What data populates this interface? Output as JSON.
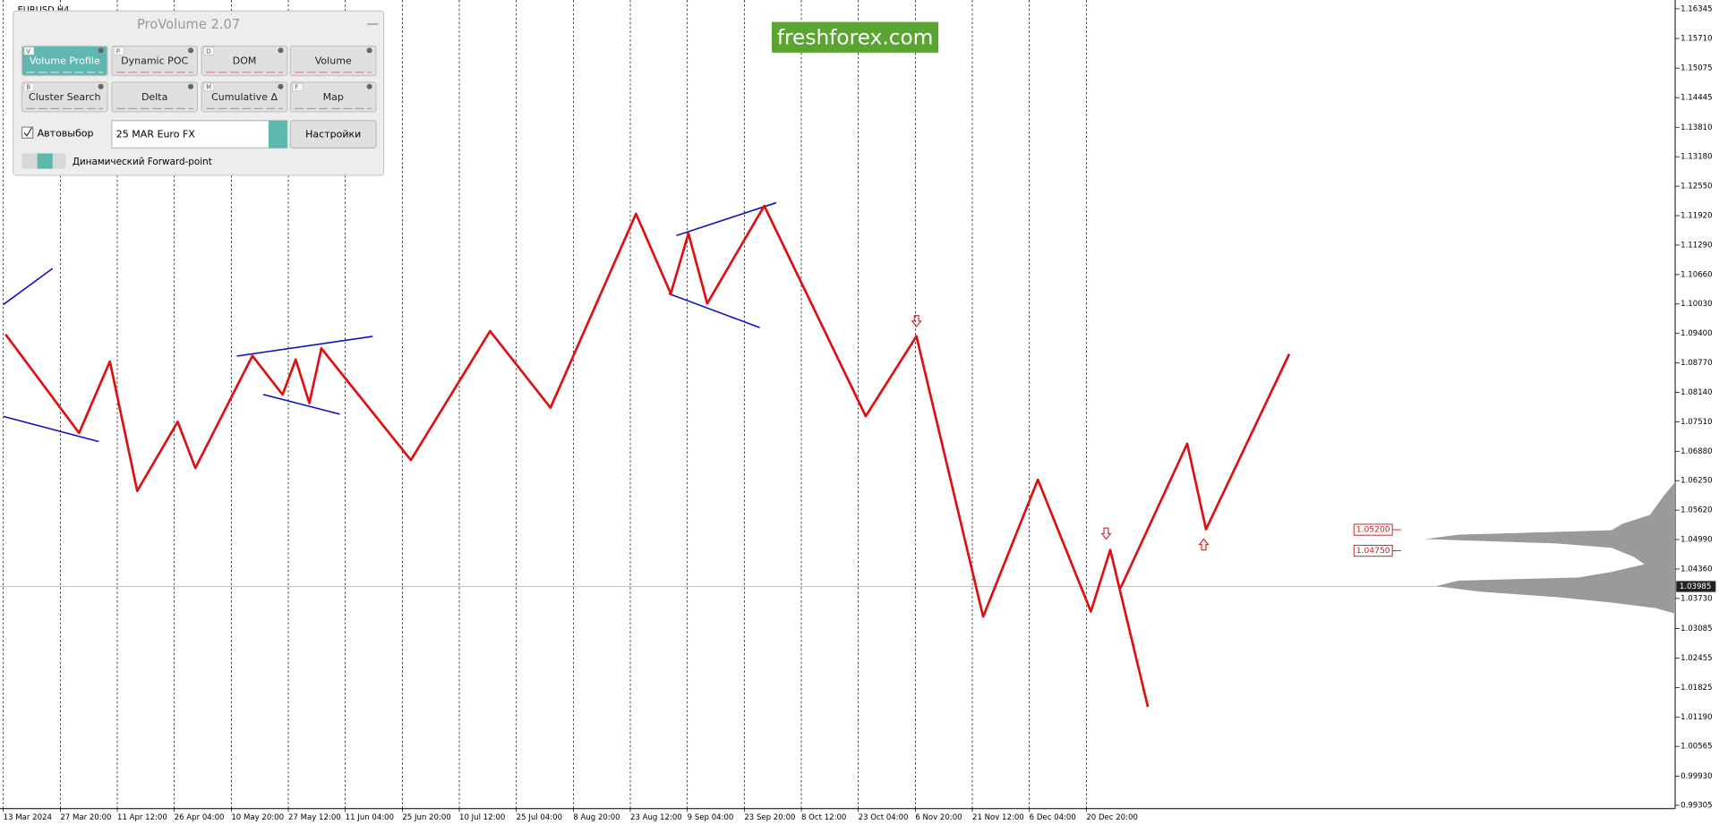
{
  "chart_data": {
    "type": "line",
    "symbol": "EURUSD,H4",
    "grid": true,
    "xlim": [
      -0.0577,
      29.33
    ],
    "ylim": [
      0.99234,
      1.16533
    ],
    "xticks": [
      {
        "value": 0,
        "label": "13 Mar 2024"
      },
      {
        "value": 1,
        "label": "27 Mar 20:00"
      },
      {
        "value": 2,
        "label": "11 Apr 12:00"
      },
      {
        "value": 3,
        "label": "26 Apr 04:00"
      },
      {
        "value": 4,
        "label": "10 May 20:00"
      },
      {
        "value": 5,
        "label": "27 May 12:00"
      },
      {
        "value": 6,
        "label": "11 Jun 04:00"
      },
      {
        "value": 7,
        "label": "25 Jun 20:00"
      },
      {
        "value": 8,
        "label": "10 Jul 12:00"
      },
      {
        "value": 9,
        "label": "25 Jul 04:00"
      },
      {
        "value": 10,
        "label": "8 Aug 20:00"
      },
      {
        "value": 11,
        "label": "23 Aug 12:00"
      },
      {
        "value": 12,
        "label": "9 Sep 04:00"
      },
      {
        "value": 13,
        "label": "23 Sep 20:00"
      },
      {
        "value": 14,
        "label": "8 Oct 12:00"
      },
      {
        "value": 15,
        "label": "23 Oct 04:00"
      },
      {
        "value": 16,
        "label": "6 Nov 20:00"
      },
      {
        "value": 17,
        "label": "21 Nov 12:00"
      },
      {
        "value": 18,
        "label": "6 Dec 04:00"
      },
      {
        "value": 19,
        "label": "20 Dec 20:00"
      }
    ],
    "yticks": [
      1.16345,
      {
        "value": 1.1571,
        "label": "1.15710"
      },
      1.15075,
      1.14445,
      {
        "value": 1.1381,
        "label": "1.13810"
      },
      {
        "value": 1.1318,
        "label": "1.13180"
      },
      {
        "value": 1.1255,
        "label": "1.12550"
      },
      {
        "value": 1.1192,
        "label": "1.11920"
      },
      {
        "value": 1.1129,
        "label": "1.11290"
      },
      {
        "value": 1.1066,
        "label": "1.10660"
      },
      {
        "value": 1.1003,
        "label": "1.10030"
      },
      {
        "value": 1.094,
        "label": "1.09400"
      },
      {
        "value": 1.0877,
        "label": "1.08770"
      },
      {
        "value": 1.0814,
        "label": "1.08140"
      },
      {
        "value": 1.0751,
        "label": "1.07510"
      },
      {
        "value": 1.0688,
        "label": "1.06880"
      },
      {
        "value": 1.0625,
        "label": "1.06250"
      },
      {
        "value": 1.0562,
        "label": "1.05620"
      },
      {
        "value": 1.0499,
        "label": "1.04990"
      },
      {
        "value": 1.0436,
        "label": "1.04360"
      },
      {
        "value": 1.0373,
        "label": "1.03730"
      },
      1.03085,
      1.02455,
      1.01825,
      {
        "value": 1.0119,
        "label": "1.01190"
      },
      1.00565,
      {
        "value": 0.9993,
        "label": "0.99930"
      },
      0.99305
    ],
    "current_price": {
      "value": 1.03985,
      "label": "1.03985"
    },
    "levels": [
      {
        "value": 1.052,
        "label": "1.05200"
      },
      {
        "value": 1.0475,
        "label": "1.04750"
      }
    ],
    "series": [
      {
        "color": "#dd1111",
        "x": [
          0.04,
          1.33,
          1.87,
          2.35,
          3.06,
          3.37,
          4.37,
          4.9,
          5.13,
          5.37,
          5.58,
          7.15,
          8.54,
          9.6,
          11.1,
          11.71,
          12.02,
          12.35,
          13.35,
          15.13,
          16.02,
          17.19,
          18.15,
          19.08,
          19.42,
          20.08
        ],
        "values": [
          1.0938,
          1.0727,
          1.088,
          1.0603,
          1.0751,
          1.0652,
          1.0892,
          1.0809,
          1.0884,
          1.0791,
          1.0908,
          1.0669,
          1.0945,
          1.0781,
          1.1196,
          1.1025,
          1.1154,
          1.1004,
          1.1213,
          1.0763,
          1.0934,
          1.0334,
          1.0627,
          1.0345,
          1.0477,
          1.0141
        ]
      },
      {
        "color": "#dd1111",
        "x": [
          19.6,
          20.77,
          21.1,
          22.56
        ],
        "values": [
          1.0395,
          1.0704,
          1.0521,
          1.0896
        ]
      }
    ]
  },
  "widget": {
    "title": "ProVolume 2.07",
    "buttons": [
      {
        "label": "Volume Profile",
        "hotkey": "V"
      },
      {
        "label": "Dynamic POC",
        "hotkey": "P"
      },
      {
        "label": "DOM",
        "hotkey": "D"
      },
      {
        "label": "Volume"
      },
      {
        "label": "Cluster Search",
        "hotkey": "B"
      },
      {
        "label": "Delta"
      },
      {
        "label": "Cumulative Δ",
        "hotkey": "M"
      },
      {
        "label": "Map",
        "hotkey": "F"
      }
    ],
    "checkbox": "Автовыбор",
    "instrument": "25 MAR Euro FX",
    "settings": "Настройки",
    "toggle": "Динамический Forward-point"
  },
  "logo": "freshforex.com"
}
